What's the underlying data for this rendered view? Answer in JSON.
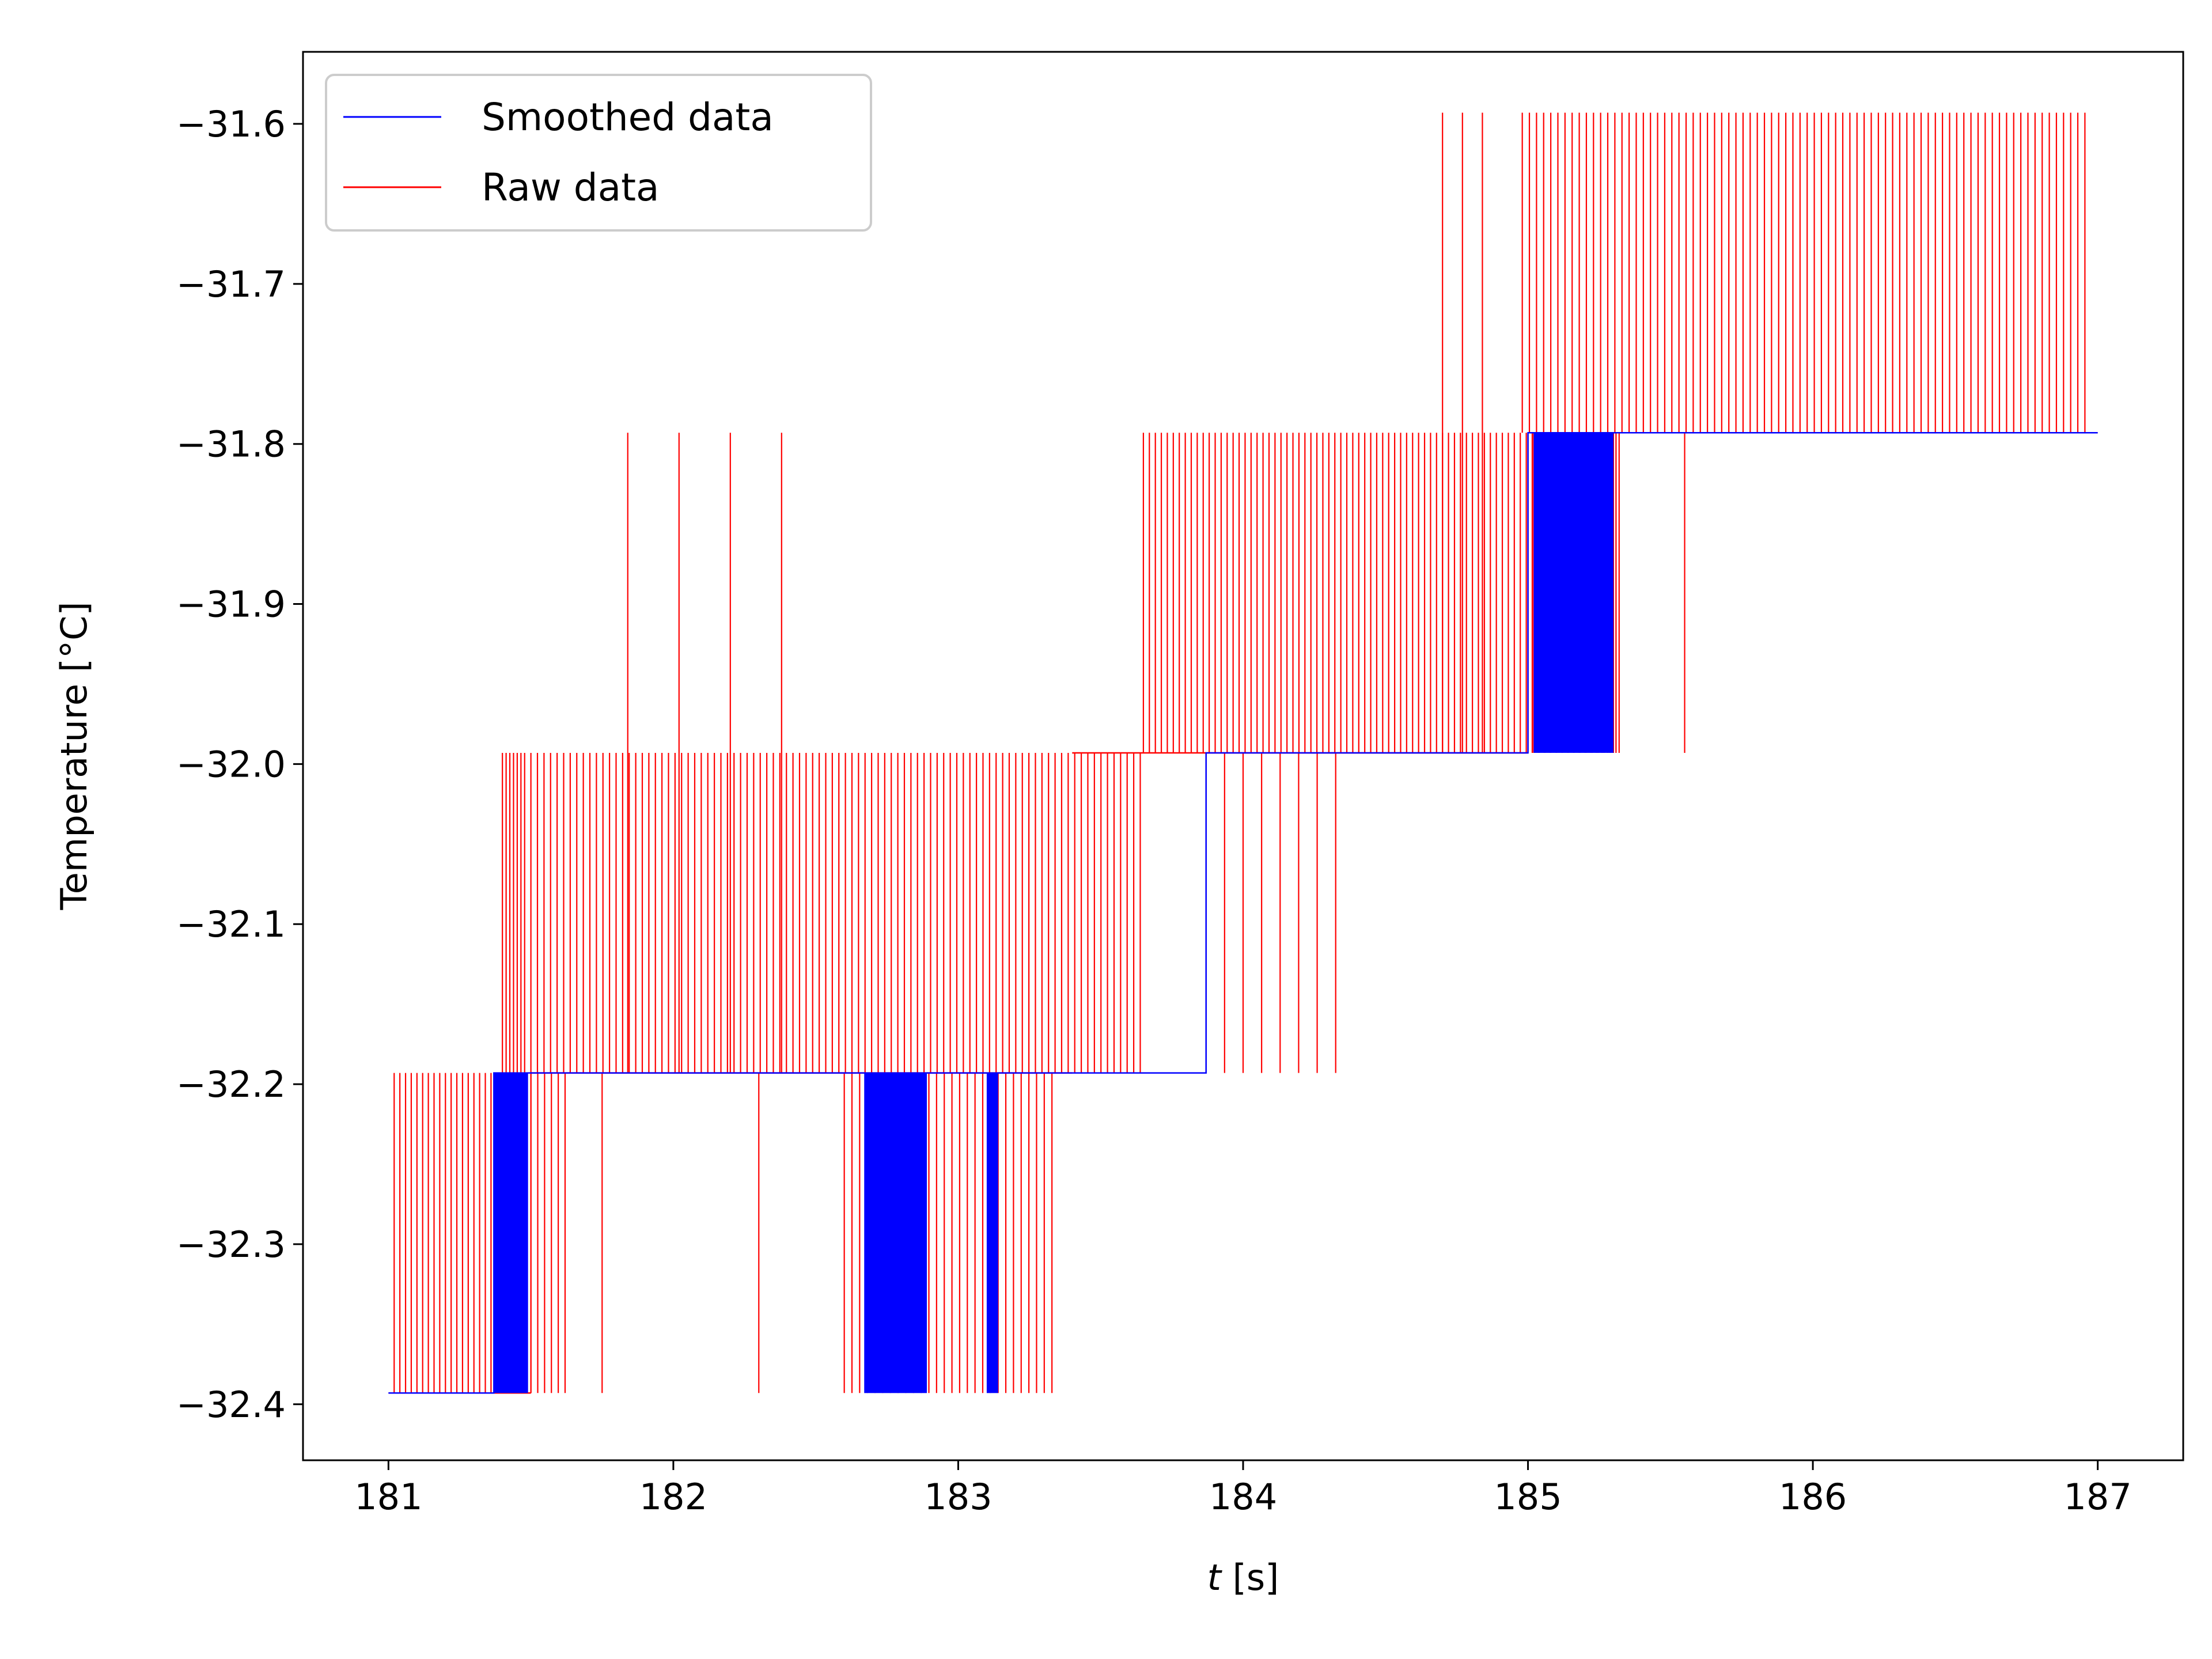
{
  "chart_data": {
    "type": "line",
    "title": "",
    "xlabel": "t [s]",
    "xlabel_var": "t",
    "xlabel_unit": " [s]",
    "ylabel": "Temperature [°C]",
    "xlim": [
      180.7,
      187.3
    ],
    "ylim": [
      -32.435,
      -31.555
    ],
    "xticks": [
      181,
      182,
      183,
      184,
      185,
      186,
      187
    ],
    "xtick_labels": [
      "181",
      "182",
      "183",
      "184",
      "185",
      "186",
      "187"
    ],
    "yticks": [
      -32.4,
      -32.3,
      -32.2,
      -32.1,
      -32.0,
      -31.9,
      -31.8,
      -31.7,
      -31.6
    ],
    "ytick_labels": [
      "−32.4",
      "−32.3",
      "−32.2",
      "−32.1",
      "−32.0",
      "−31.9",
      "−31.8",
      "−31.7",
      "−31.6"
    ],
    "grid": false,
    "legend_position": "top-left",
    "raw_levels": [
      -32.393,
      -32.193,
      -31.993,
      -31.793,
      -31.593
    ],
    "series": [
      {
        "name": "Smoothed data",
        "color": "#0000ff",
        "segments": [
          {
            "x": [
              181.0,
              181.37
            ],
            "y": -32.393
          },
          {
            "x": [
              181.37,
              183.87
            ],
            "y": -32.193
          },
          {
            "x": [
              183.87,
              185.0
            ],
            "y": -31.993
          },
          {
            "x": [
              185.0,
              187.0
            ],
            "y": -31.793
          }
        ],
        "oscillation_bands": [
          {
            "x": [
              181.37,
              181.49
            ],
            "low": -32.393,
            "high": -32.193
          },
          {
            "x": [
              182.67,
              182.89
            ],
            "low": -32.393,
            "high": -32.193
          },
          {
            "x": [
              183.1,
              183.14
            ],
            "low": -32.393,
            "high": -32.193
          },
          {
            "x": [
              185.02,
              185.3
            ],
            "low": -31.993,
            "high": -31.793
          }
        ]
      },
      {
        "name": "Raw data",
        "color": "#ff0000",
        "baseline_steps": [
          {
            "x": [
              181.0,
              181.5
            ],
            "y": -32.393
          },
          {
            "x": [
              181.5,
              183.4
            ],
            "y": -32.193
          },
          {
            "x": [
              183.4,
              185.0
            ],
            "y": -31.993
          },
          {
            "x": [
              185.0,
              187.0
            ],
            "y": -31.793
          }
        ],
        "spikes": [
          {
            "x": [
              181.02,
              181.5
            ],
            "step": 0.02,
            "from": -32.393,
            "to": -32.193
          },
          {
            "x": [
              181.4,
              181.49
            ],
            "step": 0.013,
            "from": -32.193,
            "to": -31.993
          },
          {
            "x": [
              181.5,
              183.65
            ],
            "step": 0.023,
            "from": -32.193,
            "to": -31.993
          },
          {
            "x": [
              181.84,
              182.38
            ],
            "step": 0.18,
            "from": -32.193,
            "to": -31.793
          },
          {
            "x": [
              181.5,
              181.62
            ],
            "step": 0.024,
            "from": -32.193,
            "to": -32.393
          },
          {
            "x": [
              181.75,
              182.3
            ],
            "step": 0.55,
            "from": -32.193,
            "to": -32.393
          },
          {
            "x": [
              182.6,
              183.34
            ],
            "step": 0.027,
            "from": -32.193,
            "to": -32.393
          },
          {
            "x": [
              183.65,
              185.32
            ],
            "step": 0.021,
            "from": -31.993,
            "to": -31.793
          },
          {
            "x": [
              183.87,
              184.34
            ],
            "step": 0.065,
            "from": -31.993,
            "to": -32.193
          },
          {
            "x": [
              185.0,
              185.32
            ],
            "step": 0.02,
            "from": -31.793,
            "to": -31.993
          },
          {
            "x": [
              185.55,
              185.55
            ],
            "step": 1,
            "from": -31.793,
            "to": -31.993
          },
          {
            "x": [
              184.7,
              184.85
            ],
            "step": 0.07,
            "from": -31.993,
            "to": -31.593
          },
          {
            "x": [
              184.98,
              186.96
            ],
            "step": 0.025,
            "from": -31.793,
            "to": -31.593
          }
        ]
      }
    ]
  }
}
